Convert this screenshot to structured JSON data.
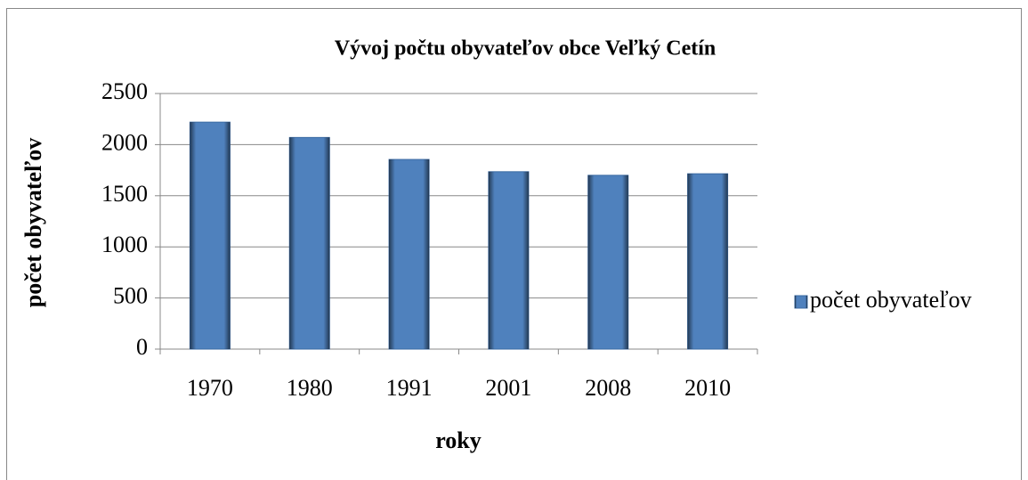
{
  "chart_data": {
    "type": "bar",
    "title": "Vývoj počtu obyvateľov obce Veľký Cetín",
    "x_label": "roky",
    "y_label": "počet obyvateľov",
    "categories": [
      "1970",
      "1980",
      "1991",
      "2001",
      "2008",
      "2010"
    ],
    "series": [
      {
        "name": "počet obyvateľov",
        "color": "#4f81bd",
        "values": [
          2220,
          2070,
          1855,
          1735,
          1700,
          1715
        ]
      }
    ],
    "ylim": [
      0,
      2500
    ],
    "yticks": [
      0,
      500,
      1000,
      1500,
      2000,
      2500
    ],
    "grid": true,
    "legend": "right"
  }
}
